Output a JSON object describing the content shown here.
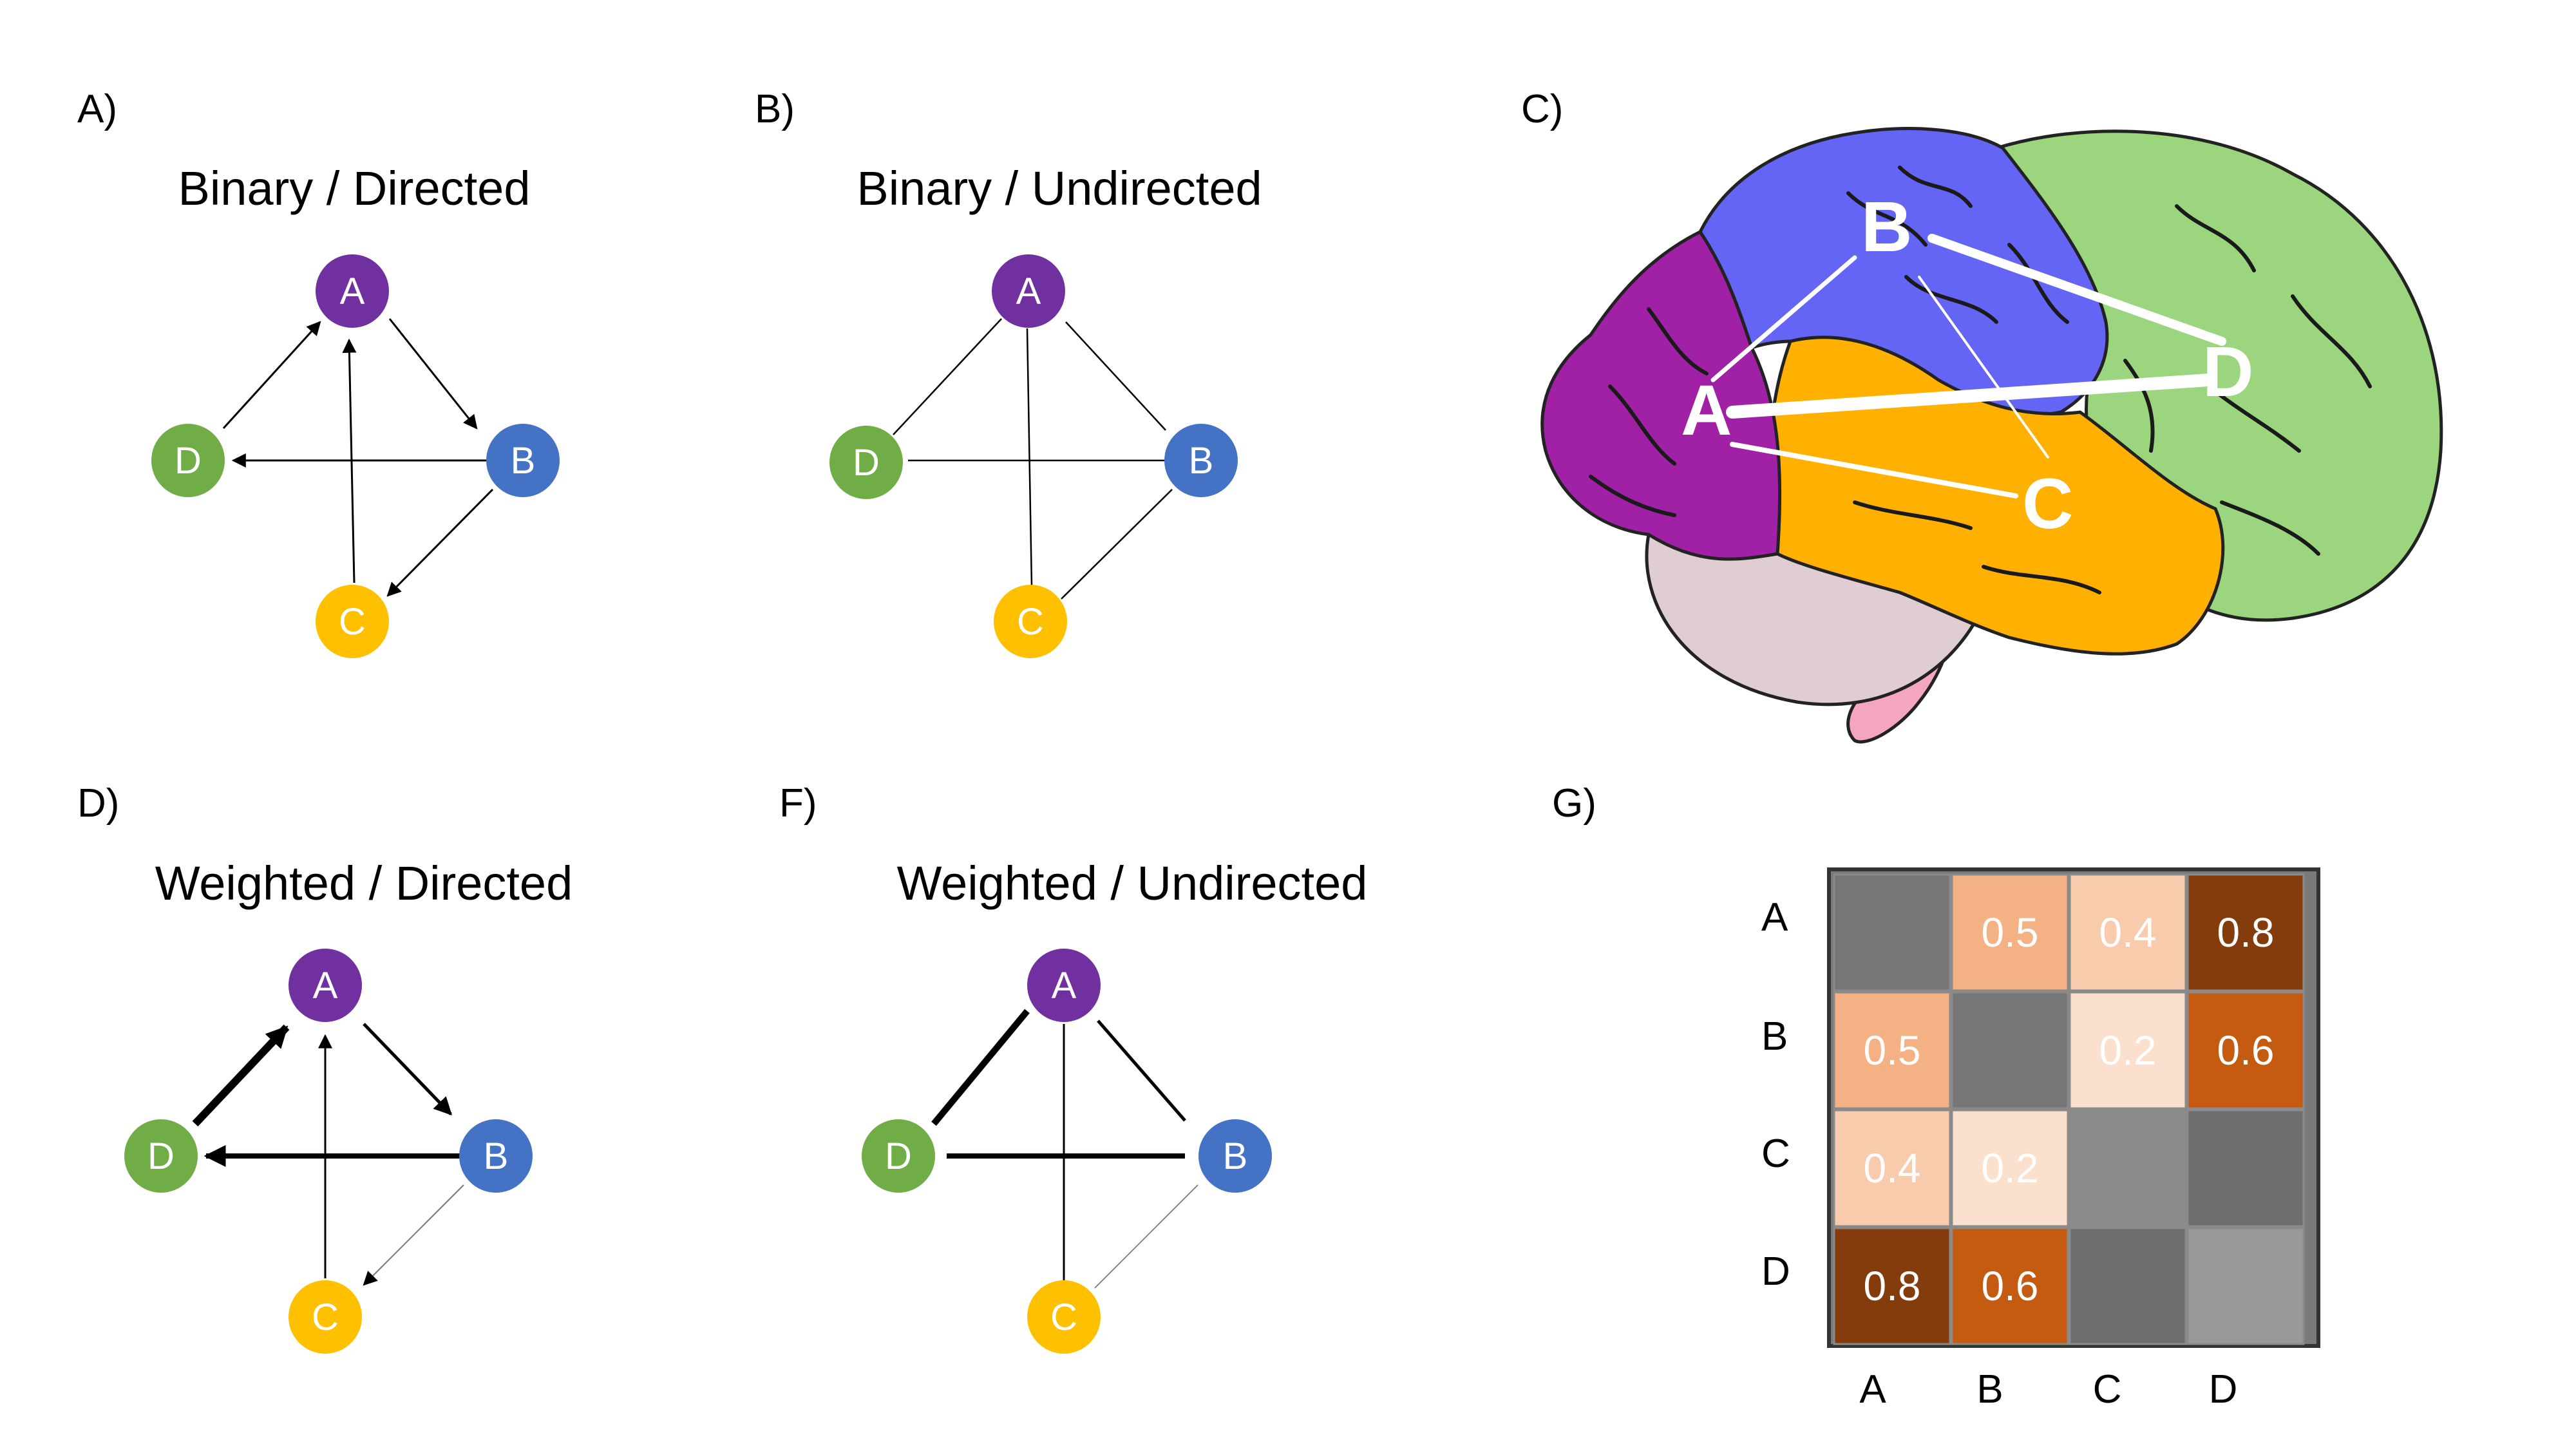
{
  "colors": {
    "node_A": "#7030a0",
    "node_B": "#4472c4",
    "node_C": "#ffc000",
    "node_D": "#70ad47",
    "matrix_grey_dark": "#767676",
    "matrix_grey_mid": "#8c8c8c",
    "matrix_grey_light": "#a0a0a0"
  },
  "panels": {
    "A": {
      "letter": "A)",
      "title": "Binary / Directed"
    },
    "B": {
      "letter": "B)",
      "title": "Binary / Undirected"
    },
    "C": {
      "letter": "C)"
    },
    "D": {
      "letter": "D)",
      "title": "Weighted / Directed"
    },
    "F": {
      "letter": "F)",
      "title": "Weighted / Undirected"
    },
    "G": {
      "letter": "G)"
    }
  },
  "nodes": [
    "A",
    "B",
    "C",
    "D"
  ],
  "brain": {
    "labels": [
      "A",
      "B",
      "C",
      "D"
    ],
    "regions": [
      "frontal-purple",
      "parietal-blue",
      "temporal-orange",
      "occipital-green",
      "cerebellum",
      "brainstem"
    ]
  },
  "matrix": {
    "row_labels": [
      "A",
      "B",
      "C",
      "D"
    ],
    "col_labels": [
      "A",
      "B",
      "C",
      "D"
    ],
    "cells": [
      [
        null,
        "0.5",
        "0.4",
        "0.8"
      ],
      [
        "0.5",
        null,
        "0.2",
        "0.6"
      ],
      [
        "0.4",
        "0.2",
        null,
        null
      ],
      [
        "0.8",
        "0.6",
        null,
        null
      ]
    ],
    "cell_colors": [
      [
        "#767676",
        "#f4b183",
        "#f8cbad",
        "#843c0c"
      ],
      [
        "#f4b183",
        "#767676",
        "#fbe0cd",
        "#c55a11"
      ],
      [
        "#f8cbad",
        "#fbe0cd",
        "#8c8c8c",
        "#6e6e6e"
      ],
      [
        "#843c0c",
        "#c55a11",
        "#6e6e6e",
        "#999999"
      ]
    ]
  }
}
